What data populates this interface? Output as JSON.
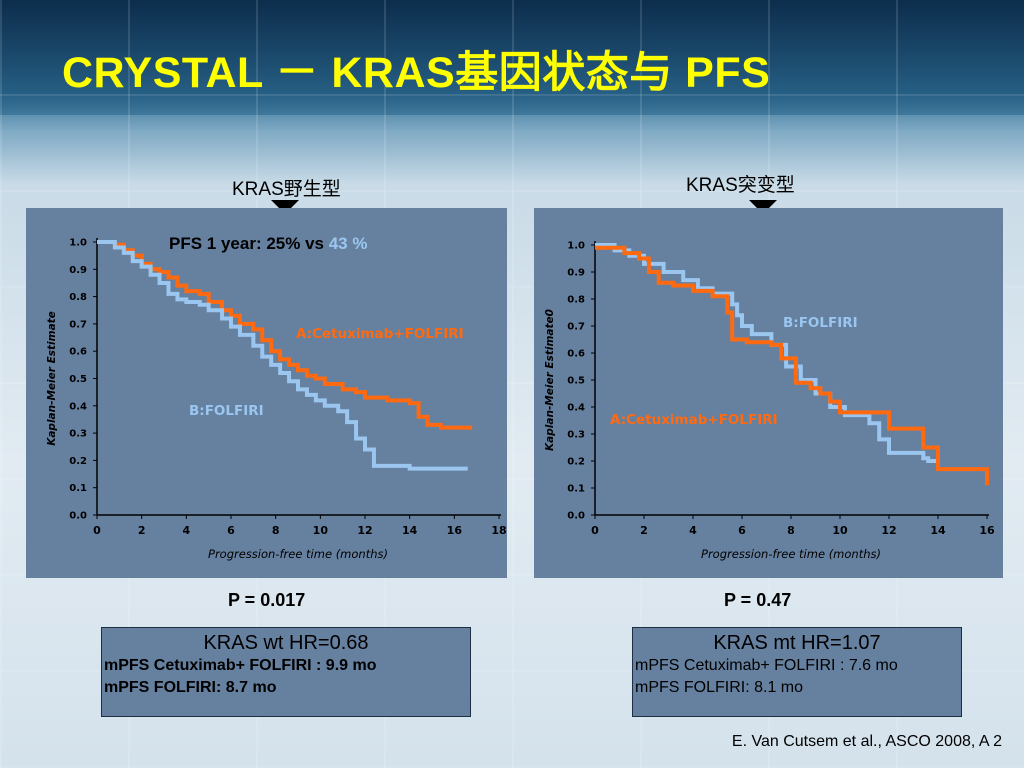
{
  "slide": {
    "title": "CRYSTAL － KRAS基因状态与 PFS",
    "citation": "E. Van Cutsem et al., ASCO 2008, A 2"
  },
  "left": {
    "group_label": "KRAS野生型",
    "p_value": "P = 0.017",
    "box": {
      "hr": "KRAS wt HR=0.68",
      "line1": "mPFS   Cetuximab+ FOLFIRI : 9.9 mo",
      "line2": "mPFS   FOLFIRI: 8.7 mo"
    }
  },
  "right": {
    "group_label": "KRAS突变型",
    "p_value": "P = 0.47",
    "box": {
      "hr": "KRAS mt HR=1.07",
      "line1": "mPFS Cetuximab+ FOLFIRI : 7.6 mo",
      "line2": "mPFS FOLFIRI: 8.1 mo"
    }
  },
  "chart_data": [
    {
      "type": "line",
      "step": true,
      "annotation_prefix": "PFS 1 year: 25% vs ",
      "annotation_highlight": "43 %",
      "xlabel": "Progression-free time (months)",
      "ylabel": "Kaplan-Meier Estimate",
      "xlim": [
        0,
        18
      ],
      "ylim": [
        0,
        1
      ],
      "xticks": [
        "0",
        "2",
        "4",
        "6",
        "8",
        "10",
        "12",
        "14",
        "16",
        "18"
      ],
      "yticks": [
        "0.0",
        "0.1",
        "0.2",
        "0.3",
        "0.4",
        "0.5",
        "0.6",
        "0.7",
        "0.8",
        "0.9",
        "1.0"
      ],
      "colors": {
        "cetuximab": "#ff6a10",
        "folfiri": "#9ac6f0",
        "highlight": "#9ac6f0"
      },
      "series": [
        {
          "name": "A:Cetuximab+FOLFIRI",
          "color_key": "cetuximab",
          "x": [
            0,
            0.8,
            1.2,
            1.6,
            2.0,
            2.4,
            2.8,
            3.2,
            3.6,
            4.0,
            4.6,
            5.0,
            5.6,
            6.0,
            6.4,
            7.0,
            7.4,
            7.8,
            8.2,
            8.6,
            9.0,
            9.4,
            9.8,
            10.2,
            11.0,
            11.6,
            12.0,
            13.0,
            14.0,
            14.4,
            14.8,
            15.4,
            16.2,
            16.8
          ],
          "y": [
            1.0,
            0.99,
            0.97,
            0.95,
            0.92,
            0.9,
            0.89,
            0.87,
            0.84,
            0.82,
            0.81,
            0.78,
            0.75,
            0.73,
            0.7,
            0.68,
            0.64,
            0.6,
            0.57,
            0.55,
            0.53,
            0.51,
            0.5,
            0.48,
            0.46,
            0.45,
            0.43,
            0.42,
            0.41,
            0.36,
            0.33,
            0.32,
            0.32,
            0.32
          ]
        },
        {
          "name": "B:FOLFIRI",
          "color_key": "folfiri",
          "x": [
            0,
            0.8,
            1.2,
            1.6,
            2.0,
            2.4,
            2.8,
            3.2,
            3.6,
            4.0,
            4.6,
            5.0,
            5.6,
            6.0,
            6.4,
            7.0,
            7.4,
            7.8,
            8.2,
            8.6,
            9.0,
            9.4,
            9.8,
            10.2,
            10.8,
            11.2,
            11.6,
            12.0,
            12.4,
            14.0,
            16.6
          ],
          "y": [
            1.0,
            0.98,
            0.96,
            0.93,
            0.91,
            0.88,
            0.85,
            0.81,
            0.79,
            0.78,
            0.77,
            0.75,
            0.72,
            0.69,
            0.66,
            0.62,
            0.58,
            0.55,
            0.52,
            0.49,
            0.46,
            0.44,
            0.42,
            0.4,
            0.38,
            0.34,
            0.28,
            0.24,
            0.18,
            0.17,
            0.17
          ]
        }
      ]
    },
    {
      "type": "line",
      "step": true,
      "xlabel": "Progression-free time (months)",
      "ylabel": "Kaplan-Meier Estimate0",
      "xlim": [
        0,
        16
      ],
      "ylim": [
        0,
        1
      ],
      "xticks": [
        "0",
        "2",
        "4",
        "6",
        "8",
        "10",
        "12",
        "14",
        "16"
      ],
      "yticks": [
        "0.0",
        "0.1",
        "0.2",
        "0.3",
        "0.4",
        "0.5",
        "0.6",
        "0.7",
        "0.8",
        "0.9",
        "1.0"
      ],
      "colors": {
        "cetuximab": "#ff6a10",
        "folfiri": "#9ac6f0"
      },
      "series": [
        {
          "name": "B:FOLFIRI",
          "color_key": "folfiri",
          "x": [
            0,
            0.8,
            1.4,
            2.0,
            2.8,
            3.6,
            4.2,
            4.8,
            5.6,
            5.8,
            6.0,
            6.4,
            7.2,
            7.8,
            8.4,
            9.0,
            9.6,
            10.2,
            11.2,
            11.6,
            12.0,
            13.4,
            13.6,
            14.0
          ],
          "y": [
            1.0,
            0.98,
            0.96,
            0.93,
            0.9,
            0.87,
            0.84,
            0.82,
            0.78,
            0.74,
            0.7,
            0.67,
            0.63,
            0.55,
            0.5,
            0.45,
            0.4,
            0.37,
            0.34,
            0.28,
            0.23,
            0.21,
            0.2,
            0.2
          ]
        },
        {
          "name": "A:Cetuximab+FOLFIRI",
          "color_key": "cetuximab",
          "x": [
            0,
            1.2,
            1.8,
            2.2,
            2.6,
            3.2,
            4.0,
            4.8,
            5.4,
            5.6,
            6.2,
            7.2,
            7.6,
            8.2,
            8.8,
            9.2,
            9.6,
            10.0,
            11.2,
            12.0,
            13.0,
            13.4,
            14.0,
            16.0
          ],
          "y": [
            0.99,
            0.97,
            0.95,
            0.9,
            0.86,
            0.85,
            0.83,
            0.81,
            0.75,
            0.65,
            0.64,
            0.63,
            0.58,
            0.49,
            0.47,
            0.45,
            0.42,
            0.38,
            0.38,
            0.32,
            0.32,
            0.25,
            0.17,
            0.11
          ]
        }
      ]
    }
  ]
}
